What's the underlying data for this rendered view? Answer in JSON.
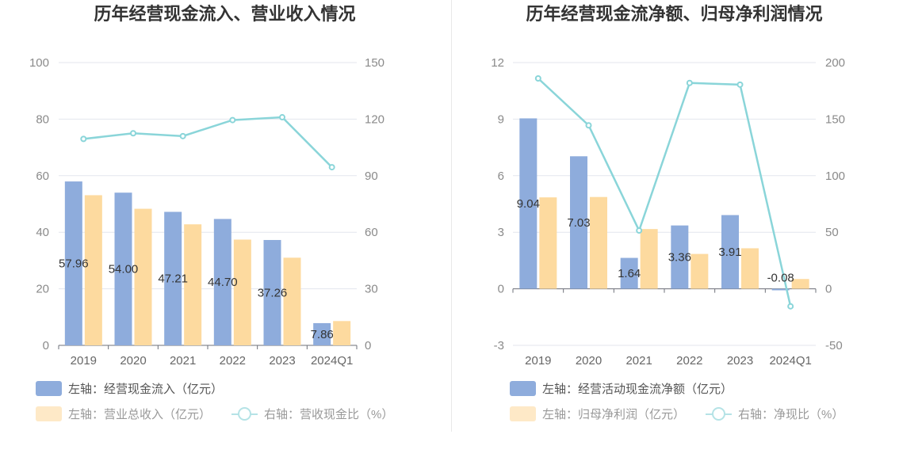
{
  "chart_data": [
    {
      "type": "bar+line",
      "title": "历年经营现金流入、营业收入情况",
      "categories": [
        "2019",
        "2020",
        "2021",
        "2022",
        "2023",
        "2024Q1"
      ],
      "left_axis": {
        "min": 0,
        "max": 100,
        "ticks": [
          0,
          20,
          40,
          60,
          80,
          100
        ]
      },
      "right_axis": {
        "min": 0,
        "max": 150,
        "ticks": [
          0,
          30,
          60,
          90,
          120,
          150
        ]
      },
      "grid": true,
      "legend_position": "bottom-left",
      "series": [
        {
          "name": "左轴：经营现金流入（亿元）",
          "kind": "bar",
          "axis": "left",
          "color": "#8eacdc",
          "values": [
            57.96,
            54.0,
            47.21,
            44.7,
            37.26,
            7.86
          ],
          "labels": [
            "57.96",
            "54.00",
            "47.21",
            "44.70",
            "37.26",
            "7.86"
          ]
        },
        {
          "name": "左轴：营业总收入（亿元）",
          "kind": "bar",
          "axis": "left",
          "color": "#fdda9f",
          "values": [
            53.1,
            48.3,
            42.8,
            37.4,
            31.0,
            8.6
          ]
        },
        {
          "name": "右轴：营收现金比（%）",
          "kind": "line",
          "axis": "right",
          "color": "#8ad5d9",
          "values": [
            109.5,
            112.5,
            111.0,
            119.5,
            121.0,
            94.5
          ]
        }
      ]
    },
    {
      "type": "bar+line",
      "title": "历年经营现金流净额、归母净利润情况",
      "categories": [
        "2019",
        "2020",
        "2021",
        "2022",
        "2023",
        "2024Q1"
      ],
      "left_axis": {
        "min": -3,
        "max": 12,
        "ticks": [
          -3,
          0,
          3,
          6,
          9,
          12
        ]
      },
      "right_axis": {
        "min": -50,
        "max": 200,
        "ticks": [
          -50,
          0,
          50,
          100,
          150,
          200
        ]
      },
      "grid": true,
      "legend_position": "bottom-left",
      "series": [
        {
          "name": "左轴：经营活动现金流净额（亿元）",
          "kind": "bar",
          "axis": "left",
          "color": "#8eacdc",
          "values": [
            9.04,
            7.03,
            1.64,
            3.36,
            3.91,
            -0.08
          ],
          "labels": [
            "9.04",
            "7.03",
            "1.64",
            "3.36",
            "3.91",
            "-0.08"
          ]
        },
        {
          "name": "左轴：归母净利润（亿元）",
          "kind": "bar",
          "axis": "left",
          "color": "#fdda9f",
          "values": [
            4.85,
            4.87,
            3.17,
            1.85,
            2.15,
            0.52
          ]
        },
        {
          "name": "右轴：净现比（%）",
          "kind": "line",
          "axis": "right",
          "color": "#8ad5d9",
          "values": [
            186,
            144.5,
            51.5,
            182,
            180.5,
            -15.5
          ]
        }
      ]
    }
  ]
}
